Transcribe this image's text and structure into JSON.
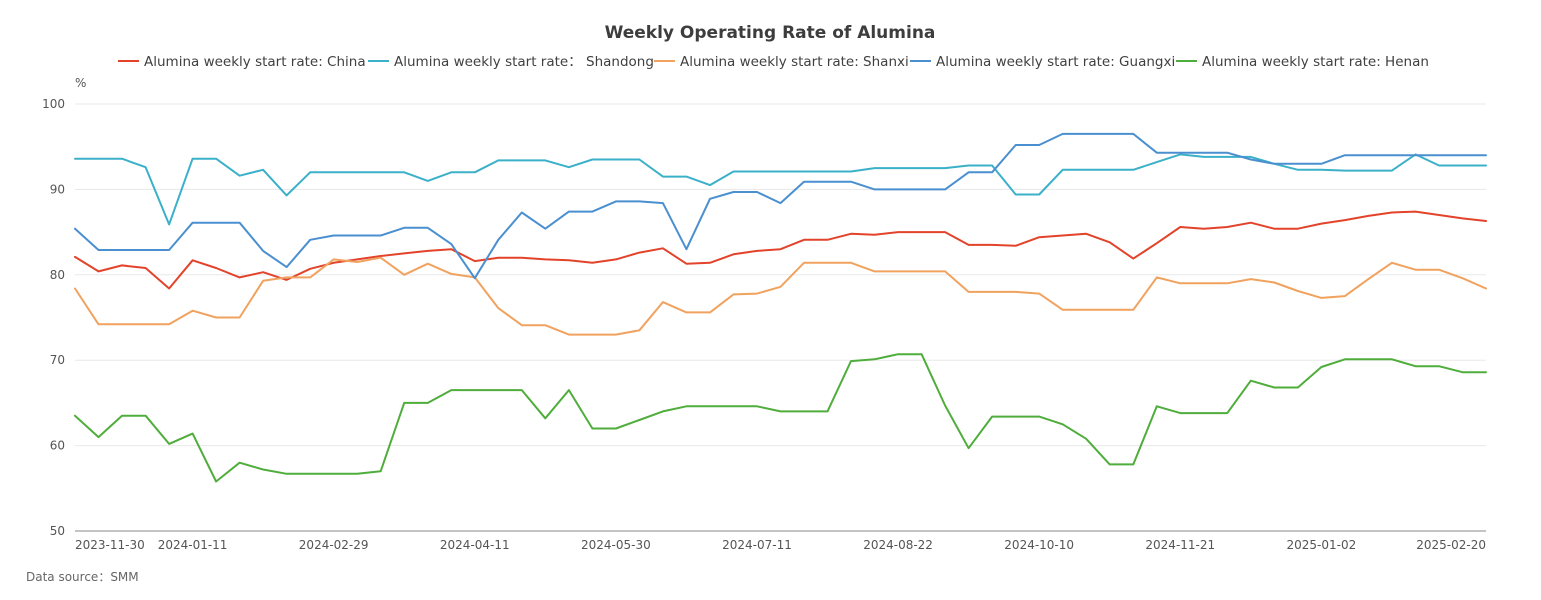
{
  "chart_data": {
    "type": "line",
    "title": "Weekly Operating Rate of Alumina",
    "ylabel": "%",
    "xlabel": "",
    "ylim": [
      50,
      100
    ],
    "yticks": [
      50,
      60,
      70,
      80,
      90,
      100
    ],
    "grid": true,
    "legend_position": "top",
    "x_tick_labels": [
      "2023-11-30",
      "2024-01-11",
      "2024-02-29",
      "2024-04-11",
      "2024-05-30",
      "2024-07-11",
      "2024-08-22",
      "2024-10-10",
      "2024-11-21",
      "2025-01-02",
      "2025-02-20"
    ],
    "x_tick_indices": [
      0,
      5,
      11,
      17,
      23,
      29,
      35,
      41,
      47,
      53,
      59
    ],
    "series": [
      {
        "name": "Alumina weekly start rate: China",
        "color": "#e2432a",
        "values": [
          82.1,
          80.4,
          81.1,
          80.8,
          78.4,
          81.7,
          80.8,
          79.7,
          80.3,
          79.4,
          80.7,
          81.4,
          81.8,
          82.2,
          82.5,
          82.8,
          83.0,
          81.6,
          82.0,
          82.0,
          81.8,
          81.7,
          81.4,
          81.8,
          82.6,
          83.1,
          81.3,
          81.4,
          82.4,
          82.8,
          83.0,
          84.1,
          84.1,
          84.8,
          84.7,
          85.0,
          85.0,
          85.0,
          83.5,
          83.5,
          83.4,
          84.4,
          84.6,
          84.8,
          83.8,
          81.9,
          83.7,
          85.6,
          85.4,
          85.6,
          86.1,
          85.4,
          85.4,
          86.0,
          86.4,
          86.9,
          87.3,
          87.4,
          87.0,
          86.6,
          86.3
        ]
      },
      {
        "name": "Alumina weekly start rate： Shandong",
        "color": "#3bb0c9",
        "values": [
          93.6,
          93.6,
          93.6,
          92.6,
          85.9,
          93.6,
          93.6,
          91.6,
          92.3,
          89.3,
          92.0,
          92.0,
          92.0,
          92.0,
          92.0,
          91.0,
          92.0,
          92.0,
          93.4,
          93.4,
          93.4,
          92.6,
          93.5,
          93.5,
          93.5,
          91.5,
          91.5,
          90.5,
          92.1,
          92.1,
          92.1,
          92.1,
          92.1,
          92.1,
          92.5,
          92.5,
          92.5,
          92.5,
          92.8,
          92.8,
          89.4,
          89.4,
          92.3,
          92.3,
          92.3,
          92.3,
          93.2,
          94.1,
          93.8,
          93.8,
          93.8,
          93.0,
          92.3,
          92.3,
          92.2,
          92.2,
          92.2,
          94.1,
          92.8,
          92.8,
          92.8
        ]
      },
      {
        "name": "Alumina weekly start rate: Shanxi",
        "color": "#f0a25e",
        "values": [
          78.4,
          74.2,
          74.2,
          74.2,
          74.2,
          75.8,
          75.0,
          75.0,
          79.3,
          79.7,
          79.7,
          81.8,
          81.5,
          82.0,
          80.0,
          81.3,
          80.1,
          79.7,
          76.1,
          74.1,
          74.1,
          73.0,
          73.0,
          73.0,
          73.5,
          76.8,
          75.6,
          75.6,
          77.7,
          77.8,
          78.6,
          81.4,
          81.4,
          81.4,
          80.4,
          80.4,
          80.4,
          80.4,
          78.0,
          78.0,
          78.0,
          77.8,
          75.9,
          75.9,
          75.9,
          75.9,
          79.7,
          79.0,
          79.0,
          79.0,
          79.5,
          79.1,
          78.1,
          77.3,
          77.5,
          79.5,
          81.4,
          80.6,
          80.6,
          79.6,
          78.4
        ]
      },
      {
        "name": "Alumina weekly start rate: Guangxi",
        "color": "#4a8fcf",
        "values": [
          85.4,
          82.9,
          82.9,
          82.9,
          82.9,
          86.1,
          86.1,
          86.1,
          82.8,
          80.9,
          84.1,
          84.6,
          84.6,
          84.6,
          85.5,
          85.5,
          83.6,
          79.6,
          84.1,
          87.3,
          85.4,
          87.4,
          87.4,
          88.6,
          88.6,
          88.4,
          83.0,
          88.9,
          89.7,
          89.7,
          88.4,
          90.9,
          90.9,
          90.9,
          90.0,
          90.0,
          90.0,
          90.0,
          92.0,
          92.0,
          95.2,
          95.2,
          96.5,
          96.5,
          96.5,
          96.5,
          94.3,
          94.3,
          94.3,
          94.3,
          93.5,
          93.0,
          93.0,
          93.0,
          94.0,
          94.0,
          94.0,
          94.0,
          94.0,
          94.0,
          94.0
        ]
      },
      {
        "name": "Alumina weekly start rate: Henan",
        "color": "#4fad3b",
        "values": [
          63.5,
          61.0,
          63.5,
          63.5,
          60.2,
          61.4,
          55.8,
          58.0,
          57.2,
          56.7,
          56.7,
          56.7,
          56.7,
          57.0,
          65.0,
          65.0,
          66.5,
          66.5,
          66.5,
          66.5,
          63.2,
          66.5,
          62.0,
          62.0,
          63.0,
          64.0,
          64.6,
          64.6,
          64.6,
          64.6,
          64.0,
          64.0,
          64.0,
          69.9,
          70.1,
          70.7,
          70.7,
          64.7,
          59.7,
          63.4,
          63.4,
          63.4,
          62.5,
          60.8,
          57.8,
          57.8,
          64.6,
          63.8,
          63.8,
          63.8,
          67.6,
          66.8,
          66.8,
          69.2,
          70.1,
          70.1,
          70.1,
          69.3,
          69.3,
          68.6,
          68.6
        ]
      }
    ]
  },
  "footer": {
    "source": "Data source：SMM"
  }
}
